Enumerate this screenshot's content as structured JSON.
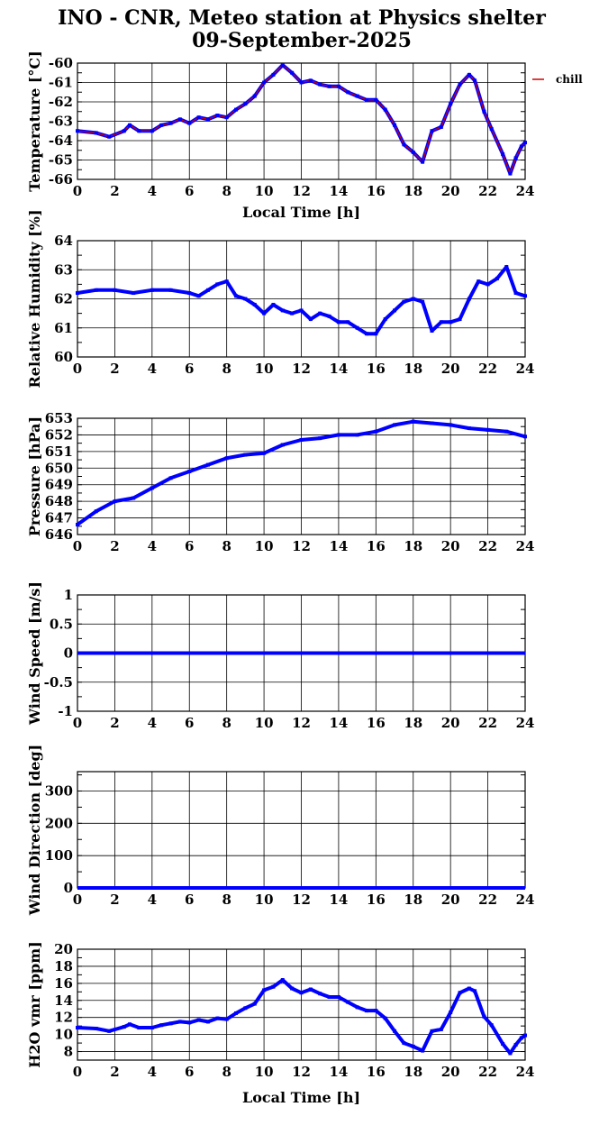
{
  "title_line1": "INO - CNR, Meteo station at Physics shelter",
  "title_line2": "09-September-2025",
  "colors": {
    "data": "#0000ff",
    "chill": "#cc0000",
    "axis": "#000000"
  },
  "chart_data": [
    {
      "type": "line",
      "ylabel": "Temperature [°C]",
      "xlabel": "Local Time [h]",
      "xlim": [
        0,
        24
      ],
      "ylim": [
        -66,
        -60
      ],
      "yticks": [
        -66,
        -65,
        -64,
        -63,
        -62,
        -61,
        -60
      ],
      "legend": "chill",
      "series": [
        {
          "name": "chill",
          "x": [
            0,
            1,
            1.7,
            2.5,
            2.8,
            3.3,
            4,
            4.5,
            5,
            5.5,
            6,
            6.5,
            7,
            7.5,
            8,
            8.5,
            9,
            9.5,
            10,
            10.5,
            11,
            11.5,
            12,
            12.5,
            13,
            13.5,
            14,
            14.5,
            15,
            15.5,
            16,
            16.5,
            17,
            17.5,
            18,
            18.5,
            19,
            19.5,
            20,
            20.5,
            21,
            21.3,
            21.8,
            22.2,
            22.8,
            23.2,
            23.5,
            23.8,
            24
          ],
          "y": [
            -63.5,
            -63.6,
            -63.8,
            -63.5,
            -63.2,
            -63.5,
            -63.5,
            -63.2,
            -63.1,
            -62.9,
            -63.1,
            -62.8,
            -62.9,
            -62.7,
            -62.8,
            -62.4,
            -62.1,
            -61.7,
            -61.0,
            -60.6,
            -60.1,
            -60.5,
            -61.0,
            -60.9,
            -61.1,
            -61.2,
            -61.2,
            -61.5,
            -61.7,
            -61.9,
            -61.9,
            -62.4,
            -63.2,
            -64.2,
            -64.6,
            -65.1,
            -63.5,
            -63.3,
            -62.1,
            -61.1,
            -60.6,
            -60.9,
            -62.5,
            -63.4,
            -64.7,
            -65.7,
            -64.9,
            -64.3,
            -64.1
          ]
        }
      ]
    },
    {
      "type": "scatter",
      "ylabel": "Relative Humidity [%]",
      "xlim": [
        0,
        24
      ],
      "ylim": [
        60,
        64
      ],
      "yticks": [
        60,
        61,
        62,
        63,
        64
      ],
      "series": [
        {
          "x": [
            0,
            1,
            2,
            3,
            4,
            5,
            6,
            6.5,
            7,
            7.5,
            8,
            8.5,
            9,
            9.5,
            10,
            10.5,
            11,
            11.5,
            12,
            12.5,
            13,
            13.5,
            14,
            14.5,
            15,
            15.5,
            16,
            16.5,
            17,
            17.5,
            18,
            18.5,
            19,
            19.5,
            20,
            20.5,
            21,
            21.5,
            22,
            22.5,
            23,
            23.5,
            24
          ],
          "y": [
            62.2,
            62.3,
            62.3,
            62.2,
            62.3,
            62.3,
            62.2,
            62.1,
            62.3,
            62.5,
            62.6,
            62.1,
            62.0,
            61.8,
            61.5,
            61.8,
            61.6,
            61.5,
            61.6,
            61.3,
            61.5,
            61.4,
            61.2,
            61.2,
            61.0,
            60.8,
            60.8,
            61.3,
            61.6,
            61.9,
            62.0,
            61.9,
            60.9,
            61.2,
            61.2,
            61.3,
            62.0,
            62.6,
            62.5,
            62.7,
            63.1,
            62.2,
            62.1
          ]
        }
      ]
    },
    {
      "type": "scatter",
      "ylabel": "Pressure [hPa]",
      "xlim": [
        0,
        24
      ],
      "ylim": [
        646,
        653
      ],
      "yticks": [
        646,
        647,
        648,
        649,
        650,
        651,
        652,
        653
      ],
      "series": [
        {
          "x": [
            0,
            1,
            2,
            3,
            4,
            5,
            6,
            7,
            8,
            9,
            10,
            11,
            12,
            13,
            14,
            15,
            16,
            17,
            18,
            19,
            20,
            21,
            22,
            23,
            24
          ],
          "y": [
            646.6,
            647.4,
            648.0,
            648.2,
            648.8,
            649.4,
            649.8,
            650.2,
            650.6,
            650.8,
            650.9,
            651.4,
            651.7,
            651.8,
            652.0,
            652.0,
            652.2,
            652.6,
            652.8,
            652.7,
            652.6,
            652.4,
            652.3,
            652.2,
            651.9
          ]
        }
      ]
    },
    {
      "type": "line",
      "ylabel": "Wind Speed [m/s]",
      "xlim": [
        0,
        24
      ],
      "ylim": [
        -1,
        1
      ],
      "yticks": [
        -1,
        -0.5,
        0,
        0.5,
        1
      ],
      "series": [
        {
          "x": [
            0,
            24
          ],
          "y": [
            0,
            0
          ]
        }
      ]
    },
    {
      "type": "line",
      "ylabel": "Wind Direction [deg]",
      "xlim": [
        0,
        24
      ],
      "ylim": [
        0,
        360
      ],
      "yticks": [
        0,
        100,
        200,
        300
      ],
      "series": [
        {
          "x": [
            0,
            24
          ],
          "y": [
            0,
            0
          ]
        }
      ]
    },
    {
      "type": "scatter",
      "ylabel": "H2O vmr [ppm]",
      "xlabel": "Local Time [h]",
      "xlim": [
        0,
        24
      ],
      "ylim": [
        7,
        20
      ],
      "yticks": [
        8,
        10,
        12,
        14,
        16,
        18,
        20
      ],
      "series": [
        {
          "x": [
            0,
            1,
            1.7,
            2.5,
            2.8,
            3.3,
            4,
            4.5,
            5,
            5.5,
            6,
            6.5,
            7,
            7.5,
            8,
            8.5,
            9,
            9.5,
            10,
            10.5,
            11,
            11.5,
            12,
            12.5,
            13,
            13.5,
            14,
            14.5,
            15,
            15.5,
            16,
            16.5,
            17,
            17.5,
            18,
            18.5,
            19,
            19.5,
            20,
            20.5,
            21,
            21.3,
            21.8,
            22.2,
            22.8,
            23.2,
            23.5,
            23.8,
            24
          ],
          "y": [
            10.8,
            10.7,
            10.4,
            10.9,
            11.2,
            10.8,
            10.8,
            11.1,
            11.3,
            11.5,
            11.4,
            11.7,
            11.5,
            11.9,
            11.8,
            12.5,
            13.1,
            13.6,
            15.2,
            15.6,
            16.4,
            15.4,
            14.9,
            15.3,
            14.8,
            14.4,
            14.4,
            13.8,
            13.2,
            12.8,
            12.8,
            11.9,
            10.4,
            9.0,
            8.6,
            8.1,
            10.4,
            10.6,
            12.6,
            14.9,
            15.4,
            15.1,
            12.1,
            11.1,
            8.9,
            7.8,
            8.8,
            9.6,
            9.9
          ]
        }
      ]
    }
  ]
}
